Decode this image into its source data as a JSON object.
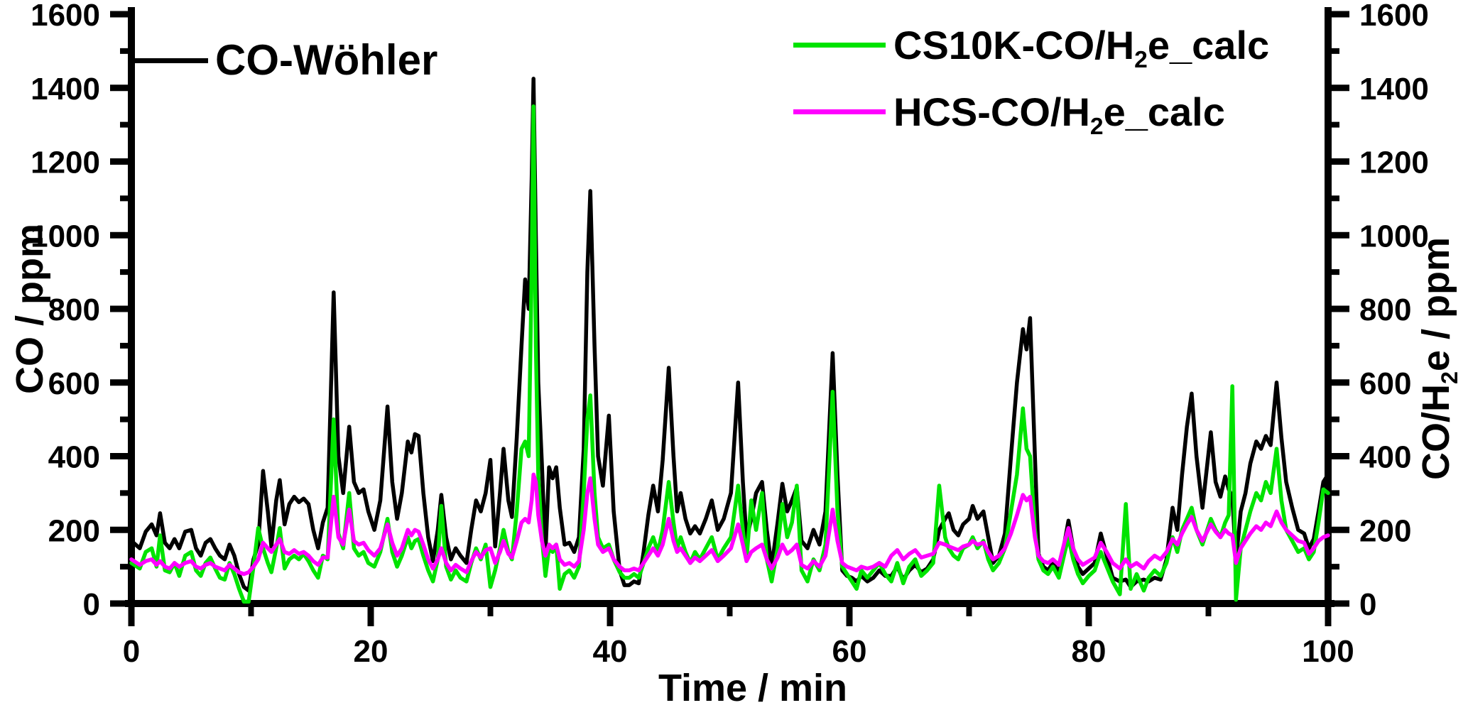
{
  "axes": {
    "x_title": "Time / min",
    "y_left_title": "CO / ppm",
    "y_right_title": {
      "pre": "CO/H",
      "sub": "2",
      "post": "e / ppm"
    }
  },
  "legend": {
    "items": [
      {
        "pre": "CO-Wöhler",
        "sub": "",
        "post": "",
        "color": "#000000"
      },
      {
        "pre": "CS10K-CO/H",
        "sub": "2",
        "post": "e_calc",
        "color": "#00e300"
      },
      {
        "pre": "HCS-CO/H",
        "sub": "2",
        "post": "e_calc",
        "color": "#ff00ff"
      }
    ]
  },
  "chart_data": {
    "type": "line",
    "title": "",
    "xlabel": "Time / min",
    "ylabel_left": "CO / ppm",
    "ylabel_right": "CO/H2e / ppm",
    "xlim": [
      0,
      100
    ],
    "ylim": [
      0,
      1600
    ],
    "x_major_ticks": [
      0,
      20,
      40,
      60,
      80,
      100
    ],
    "x_minor_step": 10,
    "y_major_ticks": [
      0,
      200,
      400,
      600,
      800,
      1000,
      1200,
      1400,
      1600
    ],
    "y_minor_step": 100,
    "grid": false,
    "legend_position": "top",
    "axis_color": "#000000",
    "x": [
      0,
      0.7,
      1.2,
      1.7,
      2.1,
      2.4,
      2.8,
      3.2,
      3.6,
      4,
      4.5,
      5,
      5.4,
      5.8,
      6.2,
      6.6,
      7,
      7.4,
      7.8,
      8.2,
      8.6,
      9,
      9.4,
      9.8,
      10.2,
      10.6,
      11,
      11.4,
      11.7,
      12.1,
      12.4,
      12.8,
      13.2,
      13.6,
      14,
      14.4,
      14.8,
      15.2,
      15.6,
      16,
      16.4,
      16.9,
      17.3,
      17.7,
      18.2,
      18.6,
      19,
      19.4,
      19.8,
      20.3,
      20.8,
      21.4,
      21.8,
      22.2,
      22.6,
      23.1,
      23.4,
      23.7,
      24,
      24.4,
      24.8,
      25.2,
      25.6,
      25.9,
      26.3,
      26.7,
      27.1,
      27.5,
      28,
      28.4,
      28.8,
      29.2,
      29.6,
      30,
      30.4,
      30.8,
      31.1,
      31.5,
      31.8,
      32.2,
      32.6,
      32.9,
      33.2,
      33.45,
      33.6,
      33.8,
      34,
      34.3,
      34.6,
      34.9,
      35.2,
      35.5,
      35.8,
      36.2,
      36.6,
      37,
      37.4,
      37.8,
      38.1,
      38.35,
      38.7,
      39,
      39.4,
      39.9,
      40.3,
      40.8,
      41.2,
      41.6,
      42,
      42.4,
      42.8,
      43.2,
      43.6,
      44,
      44.4,
      44.9,
      45.3,
      45.6,
      45.9,
      46.3,
      46.7,
      47.1,
      47.5,
      48,
      48.5,
      49,
      49.5,
      50.1,
      50.7,
      51.1,
      51.4,
      51.8,
      52.2,
      52.7,
      53.1,
      53.5,
      54,
      54.4,
      54.8,
      55.2,
      55.6,
      56,
      56.5,
      57,
      57.5,
      58,
      58.6,
      59,
      59.4,
      59.8,
      60.2,
      60.6,
      61,
      61.5,
      62,
      62.5,
      63,
      63.5,
      64,
      64.5,
      65,
      65.5,
      66,
      66.5,
      67,
      67.5,
      68,
      68.3,
      68.7,
      69.1,
      69.5,
      70,
      70.3,
      70.7,
      71.2,
      71.6,
      72,
      72.5,
      73,
      73.5,
      74,
      74.5,
      74.8,
      75.1,
      75.5,
      75.8,
      76.2,
      76.6,
      77,
      77.5,
      78,
      78.3,
      78.7,
      79.1,
      79.5,
      80,
      80.5,
      81,
      81.5,
      82,
      82.6,
      83.1,
      83.5,
      84,
      84.6,
      85,
      85.5,
      86,
      86.5,
      87,
      87.4,
      87.8,
      88.2,
      88.6,
      89,
      89.5,
      90.2,
      90.6,
      91,
      91.4,
      91.7,
      92,
      92.3,
      92.7,
      93.1,
      93.5,
      94,
      94.4,
      94.8,
      95.2,
      95.7,
      96.1,
      96.5,
      97,
      97.5,
      98,
      98.4,
      98.8,
      99.2,
      99.6,
      100
    ],
    "series": [
      {
        "name": "CO-Wöhler",
        "color": "#000000",
        "width": 5.5,
        "values": [
          170,
          150,
          195,
          215,
          185,
          245,
          165,
          150,
          175,
          150,
          195,
          200,
          150,
          130,
          165,
          175,
          150,
          130,
          120,
          160,
          130,
          80,
          45,
          35,
          120,
          160,
          360,
          250,
          155,
          280,
          335,
          215,
          270,
          290,
          275,
          285,
          270,
          200,
          150,
          220,
          260,
          845,
          400,
          300,
          480,
          330,
          300,
          310,
          250,
          200,
          280,
          535,
          330,
          230,
          300,
          440,
          410,
          460,
          455,
          300,
          180,
          115,
          200,
          295,
          180,
          120,
          150,
          130,
          110,
          200,
          280,
          250,
          300,
          390,
          155,
          300,
          420,
          280,
          235,
          450,
          700,
          880,
          800,
          1150,
          1425,
          1000,
          600,
          380,
          135,
          370,
          340,
          370,
          260,
          160,
          165,
          140,
          180,
          420,
          900,
          1120,
          700,
          400,
          320,
          510,
          250,
          90,
          50,
          50,
          60,
          55,
          140,
          240,
          320,
          250,
          390,
          640,
          400,
          250,
          300,
          230,
          190,
          210,
          190,
          230,
          280,
          200,
          230,
          300,
          600,
          330,
          175,
          230,
          300,
          330,
          200,
          100,
          220,
          325,
          250,
          280,
          315,
          170,
          150,
          200,
          160,
          250,
          680,
          350,
          90,
          75,
          70,
          60,
          75,
          60,
          70,
          90,
          75,
          75,
          100,
          65,
          90,
          105,
          85,
          95,
          120,
          200,
          230,
          245,
          200,
          185,
          215,
          230,
          265,
          230,
          250,
          180,
          110,
          130,
          190,
          400,
          600,
          745,
          690,
          775,
          400,
          135,
          100,
          90,
          110,
          85,
          170,
          225,
          150,
          100,
          80,
          95,
          110,
          190,
          130,
          70,
          60,
          65,
          45,
          60,
          65,
          60,
          70,
          65,
          120,
          260,
          200,
          350,
          480,
          570,
          400,
          260,
          465,
          330,
          290,
          345,
          310,
          290,
          115,
          250,
          300,
          380,
          440,
          420,
          455,
          430,
          600,
          450,
          330,
          260,
          200,
          190,
          150,
          175,
          250,
          330,
          350
        ]
      },
      {
        "name": "CS10K-CO/H2e_calc",
        "color": "#00e300",
        "width": 5.5,
        "values": [
          110,
          95,
          140,
          150,
          100,
          185,
          90,
          85,
          110,
          75,
          130,
          140,
          90,
          75,
          110,
          125,
          95,
          70,
          65,
          110,
          80,
          40,
          5,
          5,
          100,
          205,
          150,
          110,
          85,
          150,
          205,
          95,
          120,
          130,
          120,
          135,
          115,
          90,
          70,
          130,
          120,
          500,
          190,
          150,
          300,
          150,
          130,
          140,
          110,
          100,
          140,
          230,
          140,
          100,
          130,
          180,
          150,
          170,
          175,
          130,
          90,
          60,
          120,
          265,
          100,
          65,
          90,
          70,
          60,
          110,
          150,
          120,
          160,
          45,
          90,
          150,
          200,
          140,
          120,
          250,
          420,
          440,
          400,
          900,
          1350,
          700,
          350,
          180,
          75,
          150,
          140,
          160,
          40,
          80,
          90,
          70,
          100,
          300,
          500,
          565,
          300,
          180,
          150,
          160,
          120,
          85,
          70,
          70,
          80,
          70,
          110,
          150,
          180,
          140,
          200,
          330,
          220,
          150,
          180,
          140,
          110,
          140,
          120,
          150,
          180,
          120,
          150,
          180,
          320,
          200,
          120,
          280,
          200,
          300,
          120,
          60,
          150,
          270,
          180,
          220,
          320,
          90,
          60,
          120,
          90,
          160,
          575,
          250,
          100,
          80,
          60,
          40,
          90,
          70,
          90,
          110,
          80,
          60,
          110,
          55,
          100,
          120,
          75,
          90,
          110,
          320,
          180,
          150,
          130,
          120,
          150,
          160,
          180,
          150,
          170,
          120,
          90,
          110,
          150,
          250,
          350,
          530,
          420,
          400,
          200,
          120,
          90,
          80,
          100,
          70,
          140,
          180,
          120,
          80,
          55,
          75,
          90,
          140,
          100,
          60,
          25,
          270,
          40,
          80,
          35,
          70,
          90,
          75,
          110,
          180,
          140,
          200,
          230,
          260,
          200,
          160,
          230,
          200,
          180,
          220,
          240,
          590,
          10,
          150,
          200,
          250,
          300,
          280,
          330,
          300,
          420,
          280,
          200,
          170,
          140,
          150,
          120,
          140,
          220,
          310,
          300
        ]
      },
      {
        "name": "HCS-CO/H2e_calc",
        "color": "#ff00ff",
        "width": 5.5,
        "values": [
          120,
          105,
          115,
          120,
          105,
          115,
          100,
          95,
          110,
          100,
          110,
          115,
          100,
          95,
          105,
          110,
          100,
          95,
          90,
          105,
          95,
          85,
          80,
          85,
          100,
          120,
          165,
          150,
          140,
          160,
          175,
          140,
          135,
          145,
          135,
          140,
          130,
          115,
          105,
          125,
          125,
          290,
          180,
          160,
          255,
          170,
          160,
          165,
          145,
          130,
          150,
          215,
          165,
          130,
          150,
          200,
          185,
          200,
          195,
          160,
          120,
          95,
          120,
          150,
          110,
          90,
          105,
          95,
          85,
          115,
          140,
          125,
          145,
          150,
          110,
          140,
          170,
          135,
          125,
          170,
          220,
          230,
          220,
          280,
          350,
          330,
          240,
          170,
          130,
          160,
          150,
          160,
          120,
          105,
          110,
          100,
          115,
          200,
          300,
          340,
          230,
          160,
          140,
          150,
          120,
          100,
          90,
          90,
          95,
          90,
          110,
          130,
          150,
          130,
          160,
          230,
          170,
          140,
          150,
          130,
          110,
          125,
          115,
          130,
          145,
          115,
          130,
          150,
          215,
          160,
          115,
          140,
          150,
          160,
          120,
          95,
          125,
          160,
          135,
          145,
          160,
          105,
          95,
          115,
          100,
          130,
          255,
          170,
          110,
          100,
          95,
          90,
          100,
          95,
          100,
          110,
          100,
          130,
          145,
          120,
          135,
          145,
          125,
          130,
          135,
          165,
          160,
          155,
          150,
          145,
          155,
          160,
          170,
          160,
          165,
          140,
          120,
          130,
          150,
          190,
          240,
          295,
          280,
          290,
          180,
          130,
          115,
          110,
          120,
          105,
          170,
          205,
          150,
          120,
          105,
          115,
          125,
          165,
          140,
          110,
          95,
          120,
          100,
          110,
          95,
          115,
          130,
          120,
          140,
          175,
          160,
          190,
          215,
          235,
          200,
          170,
          215,
          195,
          180,
          200,
          190,
          185,
          110,
          150,
          170,
          190,
          210,
          200,
          220,
          210,
          250,
          220,
          200,
          185,
          170,
          165,
          135,
          150,
          170,
          180,
          185
        ]
      }
    ]
  }
}
